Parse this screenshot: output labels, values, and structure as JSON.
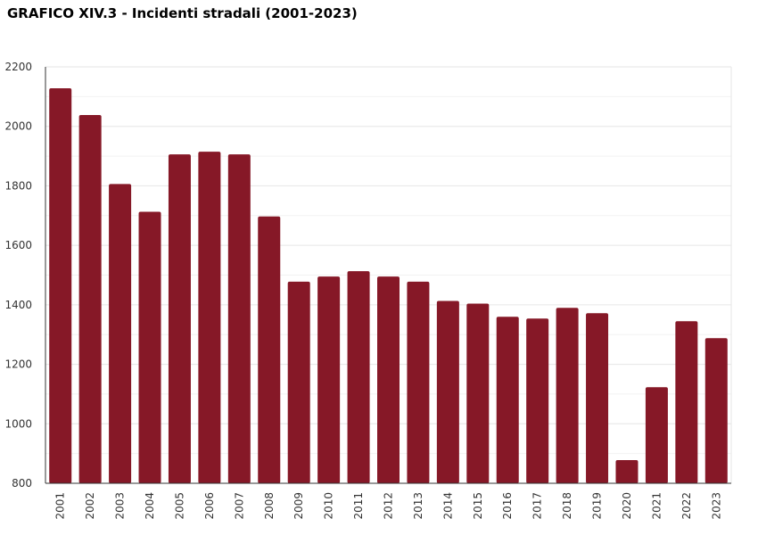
{
  "chart_data": {
    "type": "bar",
    "title": "GRAFICO XIV.3 - Incidenti stradali (2001-2023)",
    "xlabel": "",
    "ylabel": "",
    "ylim": [
      800,
      2200
    ],
    "yticks": [
      "800",
      "1000",
      "1200",
      "1400",
      "1600",
      "1800",
      "2000",
      "2200"
    ],
    "grid": true,
    "color": "#861827",
    "categories": [
      "2001",
      "2002",
      "2003",
      "2004",
      "2005",
      "2006",
      "2007",
      "2008",
      "2009",
      "2010",
      "2011",
      "2012",
      "2013",
      "2014",
      "2015",
      "2016",
      "2017",
      "2018",
      "2019",
      "2020",
      "2021",
      "2022",
      "2023"
    ],
    "values": [
      2128,
      2038,
      1806,
      1713,
      1906,
      1915,
      1906,
      1697,
      1478,
      1495,
      1513,
      1495,
      1478,
      1413,
      1404,
      1360,
      1354,
      1390,
      1372,
      878,
      1123,
      1345,
      1288
    ]
  }
}
